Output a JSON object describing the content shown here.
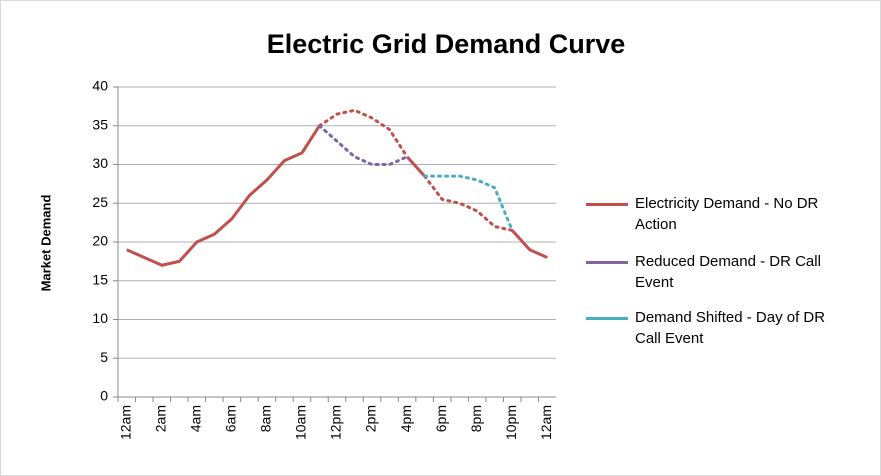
{
  "chart_data": {
    "type": "line",
    "title": "Electric Grid Demand Curve",
    "y_label": "Market Demand",
    "categories": [
      "12am",
      null,
      "2am",
      null,
      "4am",
      null,
      "6am",
      null,
      "8am",
      null,
      "10am",
      null,
      "12pm",
      null,
      "2pm",
      null,
      "4pm",
      null,
      "6pm",
      null,
      "8pm",
      null,
      "10pm",
      null,
      "12am"
    ],
    "series": [
      {
        "name": "Electricity Demand - No DR Action",
        "color": "#c0504d",
        "values": [
          19,
          18,
          17,
          17.5,
          20,
          21,
          23,
          26,
          28,
          30.5,
          31.5,
          35,
          36.5,
          37,
          36,
          34.5,
          31,
          28.5,
          25.5,
          25,
          24,
          22,
          21.5,
          19,
          18
        ]
      },
      {
        "name": "Reduced Demand - DR Call Event",
        "color": "#8064a2",
        "values": [
          null,
          null,
          null,
          null,
          null,
          null,
          null,
          null,
          null,
          null,
          null,
          35,
          33,
          31,
          30,
          30,
          31,
          null,
          null,
          null,
          null,
          null,
          null,
          null,
          null
        ]
      },
      {
        "name": "Demand Shifted - Day of DR Call Event",
        "color": "#4bacc6",
        "values": [
          null,
          null,
          null,
          null,
          null,
          null,
          null,
          null,
          null,
          null,
          null,
          null,
          null,
          null,
          null,
          null,
          null,
          28.5,
          28.5,
          28.5,
          28,
          27,
          21.5,
          null,
          null
        ]
      }
    ],
    "ylim": [
      0,
      40
    ],
    "yticks": [
      0,
      5,
      10,
      15,
      20,
      25,
      30,
      35,
      40
    ],
    "grid": true,
    "legend": "right"
  }
}
